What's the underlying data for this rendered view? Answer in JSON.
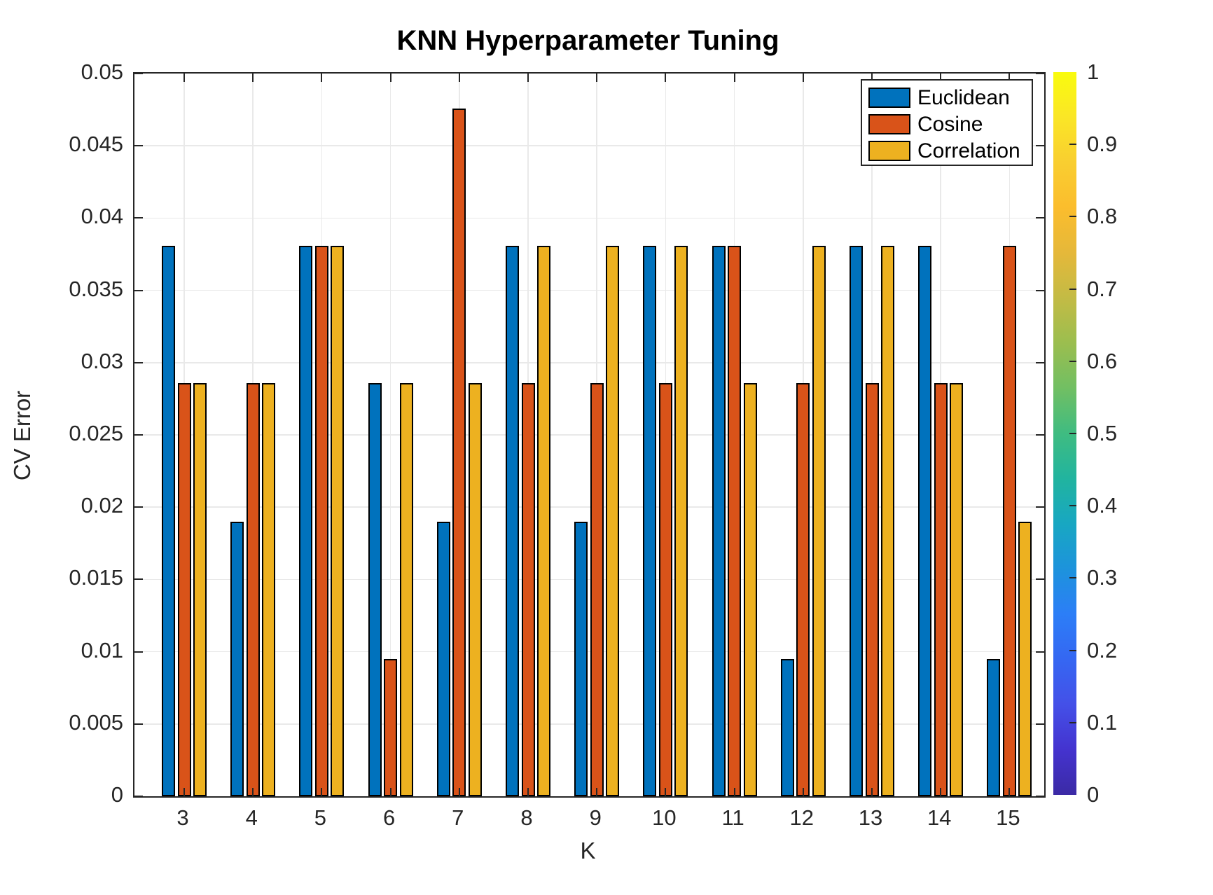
{
  "figure": {
    "title": "KNN Hyperparameter Tuning",
    "xlabel": "K",
    "ylabel": "CV Error"
  },
  "chart_data": {
    "type": "bar",
    "title": "KNN Hyperparameter Tuning",
    "xlabel": "K",
    "ylabel": "CV Error",
    "categories": [
      3,
      4,
      5,
      6,
      7,
      8,
      9,
      10,
      11,
      12,
      13,
      14,
      15
    ],
    "series": [
      {
        "name": "Euclidean",
        "color": "#0072BD",
        "values": [
          0.0381,
          0.019,
          0.0381,
          0.0286,
          0.019,
          0.0381,
          0.019,
          0.0381,
          0.0381,
          0.0095,
          0.0381,
          0.0381,
          0.0095
        ]
      },
      {
        "name": "Cosine",
        "color": "#D95319",
        "values": [
          0.0286,
          0.0286,
          0.0381,
          0.0095,
          0.0476,
          0.0286,
          0.0286,
          0.0286,
          0.0381,
          0.0286,
          0.0286,
          0.0286,
          0.0381
        ]
      },
      {
        "name": "Correlation",
        "color": "#EDB120",
        "values": [
          0.0286,
          0.0286,
          0.0381,
          0.0286,
          0.0286,
          0.0381,
          0.0381,
          0.0381,
          0.0286,
          0.0381,
          0.0381,
          0.0286,
          0.019
        ]
      }
    ],
    "ylim": [
      0,
      0.05
    ],
    "yticks": [
      "0",
      "0.005",
      "0.01",
      "0.015",
      "0.02",
      "0.025",
      "0.03",
      "0.035",
      "0.04",
      "0.045",
      "0.05"
    ],
    "grid": true,
    "bar_edge_color": "#000000",
    "legend_position": "top-right",
    "legend_entries": [
      "Euclidean",
      "Cosine",
      "Correlation"
    ],
    "colorbar": {
      "min": 0,
      "max": 1,
      "ticks": [
        "0",
        "0.1",
        "0.2",
        "0.3",
        "0.4",
        "0.5",
        "0.6",
        "0.7",
        "0.8",
        "0.9",
        "1"
      ],
      "colormap": "parula",
      "gradient_bottom_to_top": [
        "#3b2aa5",
        "#4433cf",
        "#4450e8",
        "#3567f2",
        "#2c7ef7",
        "#1d93dc",
        "#18a7c2",
        "#21b49f",
        "#3fbc81",
        "#71bf63",
        "#9bbe4f",
        "#c3bb45",
        "#e5b83a",
        "#fbbd2d",
        "#f9ce30",
        "#fae626",
        "#f9fb0e"
      ]
    }
  }
}
